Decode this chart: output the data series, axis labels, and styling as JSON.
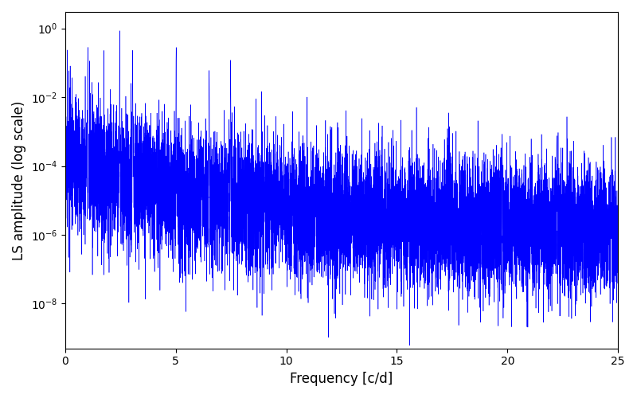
{
  "line_color": "#0000ff",
  "xlabel": "Frequency [c/d]",
  "ylabel": "LS amplitude (log scale)",
  "xlim": [
    0,
    25
  ],
  "ylim": [
    5e-10,
    3
  ],
  "freq_max": 25.0,
  "n_points": 10000,
  "seed": 17,
  "peak_freqs": [
    1.03,
    2.47,
    3.05,
    5.02,
    6.51,
    7.48,
    9.02
  ],
  "peak_amplitudes": [
    0.28,
    0.85,
    0.15,
    0.28,
    0.06,
    0.12,
    0.003
  ],
  "peak_widths": [
    0.006,
    0.004,
    0.005,
    0.005,
    0.005,
    0.005,
    0.005
  ],
  "linewidth": 0.4,
  "figsize": [
    8.0,
    5.0
  ],
  "dpi": 100
}
